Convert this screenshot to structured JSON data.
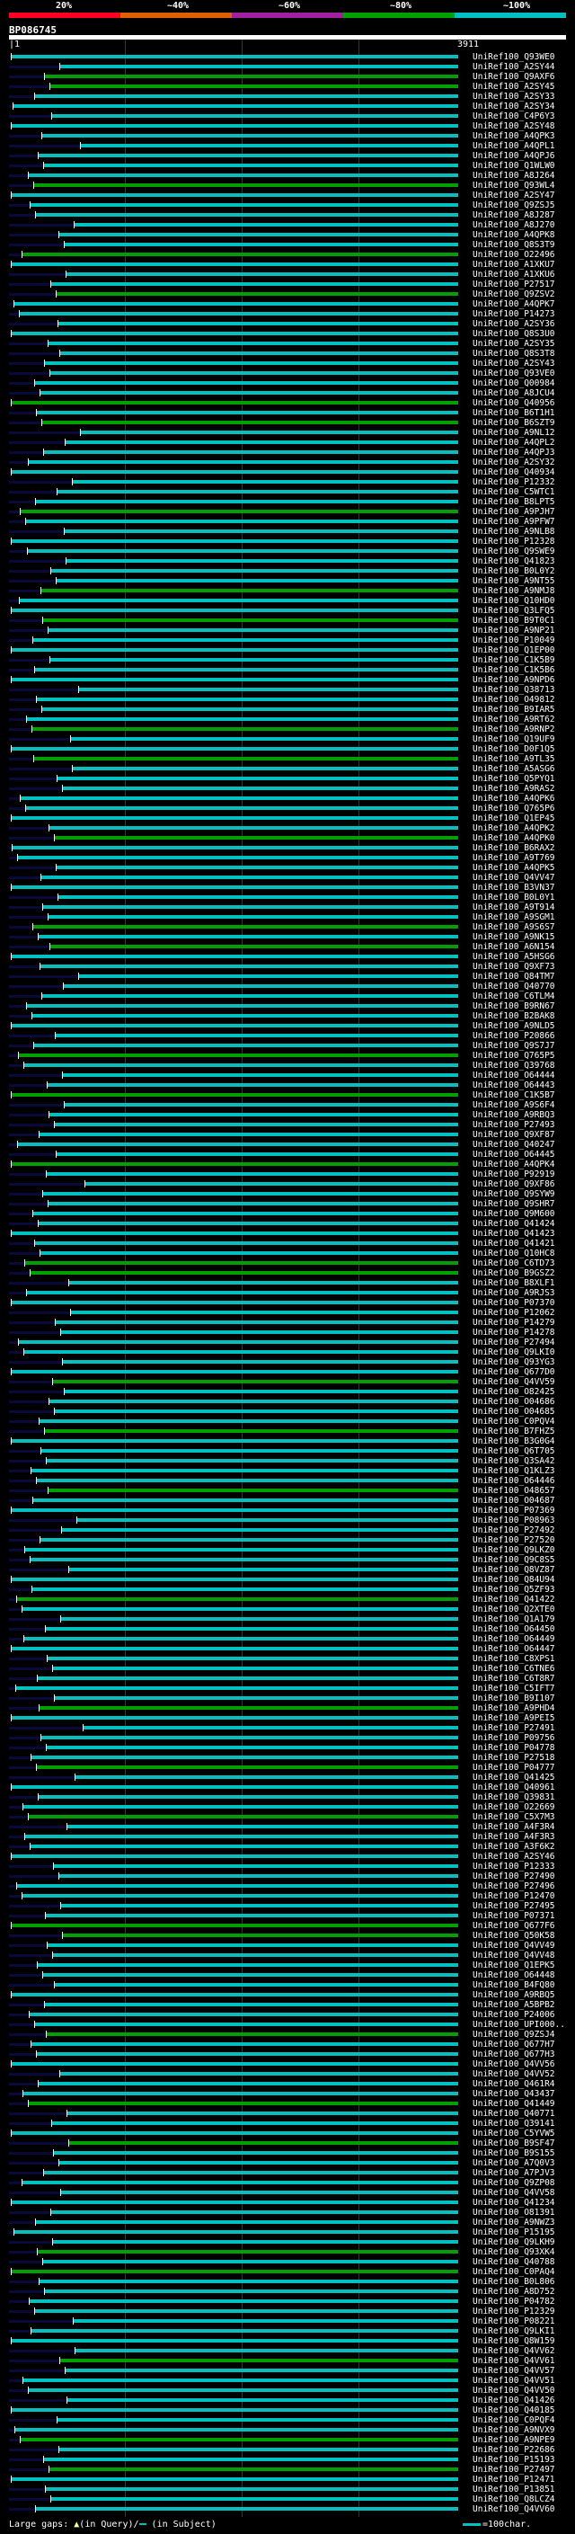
{
  "header": {
    "scale_labels": [
      "20%",
      "~40%",
      "~60%",
      "~80%",
      "~100%"
    ],
    "scale_colors": [
      "#ff0022",
      "#e06000",
      "#a020a0",
      "#00a000",
      "#00c0c0"
    ],
    "query_id": "BP086745",
    "query_start": "|1",
    "query_end": "3911"
  },
  "colors": {
    "hit_high": "#00c0c0",
    "hit_mid": "#00a000",
    "gap_subject": "#00c0c0",
    "gap_query": "#ffff99"
  },
  "hits": [
    "UniRef100_Q93WE0",
    "UniRef100_A2SY44",
    "UniRef100_Q9AXF6",
    "UniRef100_A2SY45",
    "UniRef100_A2SY33",
    "UniRef100_A2SY34",
    "UniRef100_C4P6Y3",
    "UniRef100_A2SY48",
    "UniRef100_A4QPK3",
    "UniRef100_A4QPL1",
    "UniRef100_A4QPJ6",
    "UniRef100_Q1WLW0",
    "UniRef100_A8J264",
    "UniRef100_Q93WL4",
    "UniRef100_A2SY47",
    "UniRef100_Q9ZSJ5",
    "UniRef100_A8J287",
    "UniRef100_A8J270",
    "UniRef100_A4QPK8",
    "UniRef100_Q8S3T9",
    "UniRef100_O22496",
    "UniRef100_A1XKU7",
    "UniRef100_A1XKU6",
    "UniRef100_P27517",
    "UniRef100_Q9ZSV2",
    "UniRef100_A4QPK7",
    "UniRef100_P14273",
    "UniRef100_A2SY36",
    "UniRef100_Q8S3U0",
    "UniRef100_A2SY35",
    "UniRef100_Q8S3T8",
    "UniRef100_A2SY43",
    "UniRef100_Q93VE0",
    "UniRef100_Q00984",
    "UniRef100_A8JCU4",
    "UniRef100_Q40956",
    "UniRef100_B6T1H1",
    "UniRef100_B6SZT9",
    "UniRef100_A9NL12",
    "UniRef100_A4QPL2",
    "UniRef100_A4QPJ3",
    "UniRef100_A2SY32",
    "UniRef100_Q40934",
    "UniRef100_P12332",
    "UniRef100_C5WTC1",
    "UniRef100_B8LPT5",
    "UniRef100_A9PJH7",
    "UniRef100_A9PFW7",
    "UniRef100_A9NLB8",
    "UniRef100_P12328",
    "UniRef100_Q9SWE9",
    "UniRef100_Q41823",
    "UniRef100_B0L0Y2",
    "UniRef100_A9NT55",
    "UniRef100_A9NMJ8",
    "UniRef100_Q10HD0",
    "UniRef100_Q3LFQ5",
    "UniRef100_B9T0C1",
    "UniRef100_A9NP21",
    "UniRef100_P10049",
    "UniRef100_Q1EP00",
    "UniRef100_C1K5B9",
    "UniRef100_C1K5B6",
    "UniRef100_A9NPD6",
    "UniRef100_Q38713",
    "UniRef100_O49812",
    "UniRef100_B9IAR5",
    "UniRef100_A9RT62",
    "UniRef100_A9RNP2",
    "UniRef100_Q19UF9",
    "UniRef100_D0F1Q5",
    "UniRef100_A9TL35",
    "UniRef100_A5ASG6",
    "UniRef100_Q5PYQ1",
    "UniRef100_A9RAS2",
    "UniRef100_A4QPK6",
    "UniRef100_Q765P6",
    "UniRef100_Q1EP45",
    "UniRef100_A4QPK2",
    "UniRef100_A4QPK0",
    "UniRef100_B6RAX2",
    "UniRef100_A9T769",
    "UniRef100_A4QPK5",
    "UniRef100_Q4VV47",
    "UniRef100_B3VN37",
    "UniRef100_B0L0Y1",
    "UniRef100_A9T914",
    "UniRef100_A9SGM1",
    "UniRef100_A9S6S7",
    "UniRef100_A9NK15",
    "UniRef100_A6N154",
    "UniRef100_A5HSG6",
    "UniRef100_Q9XF73",
    "UniRef100_Q84TM7",
    "UniRef100_Q40770",
    "UniRef100_C6TLM4",
    "UniRef100_B9RN67",
    "UniRef100_B2BAK8",
    "UniRef100_A9NLD5",
    "UniRef100_P20866",
    "UniRef100_Q9S7J7",
    "UniRef100_Q765P5",
    "UniRef100_Q39768",
    "UniRef100_O64444",
    "UniRef100_O64443",
    "UniRef100_C1K5B7",
    "UniRef100_A9S6F4",
    "UniRef100_A9RBQ3",
    "UniRef100_P27493",
    "UniRef100_Q9XF87",
    "UniRef100_Q40247",
    "UniRef100_O64445",
    "UniRef100_A4QPK4",
    "UniRef100_P92919",
    "UniRef100_Q9XF86",
    "UniRef100_Q9SYW9",
    "UniRef100_Q9SHR7",
    "UniRef100_Q9M600",
    "UniRef100_Q41424",
    "UniRef100_Q41423",
    "UniRef100_Q41421",
    "UniRef100_Q10HC8",
    "UniRef100_C6TD73",
    "UniRef100_B9GSZ2",
    "UniRef100_B8XLF1",
    "UniRef100_A9RJS3",
    "UniRef100_P07370",
    "UniRef100_P12062",
    "UniRef100_P14279",
    "UniRef100_P14278",
    "UniRef100_P27494",
    "UniRef100_Q9LKI0",
    "UniRef100_Q93YG3",
    "UniRef100_Q677D0",
    "UniRef100_Q4VV59",
    "UniRef100_O82425",
    "UniRef100_O04686",
    "UniRef100_O04685",
    "UniRef100_C0PQV4",
    "UniRef100_B7FHZ5",
    "UniRef100_B3G0G4",
    "UniRef100_Q6T705",
    "UniRef100_Q3SA42",
    "UniRef100_Q1KLZ3",
    "UniRef100_O64446",
    "UniRef100_O48657",
    "UniRef100_O04687",
    "UniRef100_P07369",
    "UniRef100_P08963",
    "UniRef100_P27492",
    "UniRef100_P27520",
    "UniRef100_Q9LKZ0",
    "UniRef100_Q9C8S5",
    "UniRef100_Q8VZ87",
    "UniRef100_Q84U94",
    "UniRef100_Q5ZF93",
    "UniRef100_Q41422",
    "UniRef100_Q2XTE0",
    "UniRef100_Q1A179",
    "UniRef100_O64450",
    "UniRef100_O64449",
    "UniRef100_O64447",
    "UniRef100_C8XPS1",
    "UniRef100_C6TNE6",
    "UniRef100_C6T8R7",
    "UniRef100_C5IFT7",
    "UniRef100_B9I107",
    "UniRef100_A9PHD4",
    "UniRef100_A9PEI5",
    "UniRef100_P27491",
    "UniRef100_P09756",
    "UniRef100_P04778",
    "UniRef100_P27518",
    "UniRef100_P04777",
    "UniRef100_Q41425",
    "UniRef100_Q40961",
    "UniRef100_Q39831",
    "UniRef100_O22669",
    "UniRef100_C5X7M3",
    "UniRef100_A4F3R4",
    "UniRef100_A4F3R3",
    "UniRef100_A3F6K2",
    "UniRef100_A2SY46",
    "UniRef100_P12333",
    "UniRef100_P27490",
    "UniRef100_P27496",
    "UniRef100_P12470",
    "UniRef100_P27495",
    "UniRef100_P07371",
    "UniRef100_Q677F6",
    "UniRef100_Q50K58",
    "UniRef100_Q4VV49",
    "UniRef100_Q4VV48",
    "UniRef100_Q1EPK5",
    "UniRef100_O64448",
    "UniRef100_B4FQ80",
    "UniRef100_A9RBQ5",
    "UniRef100_A5BPB2",
    "UniRef100_P24006",
    "UniRef100_UPI000..",
    "UniRef100_Q9ZSJ4",
    "UniRef100_Q677H7",
    "UniRef100_Q677H3",
    "UniRef100_Q4VV56",
    "UniRef100_Q4VV52",
    "UniRef100_Q461R4",
    "UniRef100_Q43437",
    "UniRef100_Q41449",
    "UniRef100_Q40771",
    "UniRef100_Q39141",
    "UniRef100_C5YVW5",
    "UniRef100_B9SF47",
    "UniRef100_B9S155",
    "UniRef100_A7Q0V3",
    "UniRef100_A7PJV3",
    "UniRef100_Q9ZP08",
    "UniRef100_Q4VV58",
    "UniRef100_Q41234",
    "UniRef100_O81391",
    "UniRef100_A9NWZ3",
    "UniRef100_P15195",
    "UniRef100_Q9LKH9",
    "UniRef100_Q93XK4",
    "UniRef100_Q40788",
    "UniRef100_C0PAQ4",
    "UniRef100_B0L806",
    "UniRef100_A8D752",
    "UniRef100_P04782",
    "UniRef100_P12329",
    "UniRef100_P08221",
    "UniRef100_Q9LKI1",
    "UniRef100_Q8W159",
    "UniRef100_Q4VV62",
    "UniRef100_Q4VV61",
    "UniRef100_Q4VV57",
    "UniRef100_Q4VV51",
    "UniRef100_Q4VV50",
    "UniRef100_Q41426",
    "UniRef100_Q40185",
    "UniRef100_C0PQF4",
    "UniRef100_A9NVX9",
    "UniRef100_A9NPE9",
    "UniRef100_P22686",
    "UniRef100_P15193",
    "UniRef100_P27497",
    "UniRef100_P12471",
    "UniRef100_P13851",
    "UniRef100_Q8LCZ4",
    "UniRef100_Q4VV60"
  ],
  "footer": {
    "gaps_label": "Large gaps:",
    "gap_query_icon": "▲",
    "gap_query_label": "(in Query)/",
    "gap_subject_label": " (in Subject)",
    "legend_label": "=100char."
  }
}
